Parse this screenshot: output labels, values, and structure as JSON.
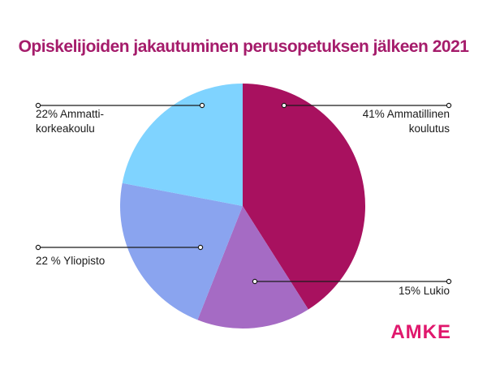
{
  "chart_data": {
    "type": "pie",
    "title": "Opiskelijoiden jakautuminen perusopetuksen jälkeen 2021",
    "slices": [
      {
        "key": "ammatillinen",
        "value": 41,
        "color": "#a8115f",
        "label_lines": [
          "41% Ammatillinen",
          "koulutus"
        ]
      },
      {
        "key": "lukio",
        "value": 15,
        "color": "#a56bc4",
        "label_lines": [
          "15% Lukio"
        ]
      },
      {
        "key": "yliopisto",
        "value": 22,
        "color": "#8aa4ef",
        "label_lines": [
          "22 % Yliopisto"
        ]
      },
      {
        "key": "amk",
        "value": 22,
        "color": "#7fd3ff",
        "label_lines": [
          "22% Ammatti-",
          "korkeakoulu"
        ]
      }
    ]
  },
  "logo": {
    "text": "AMKE",
    "color": "#e0186d"
  }
}
